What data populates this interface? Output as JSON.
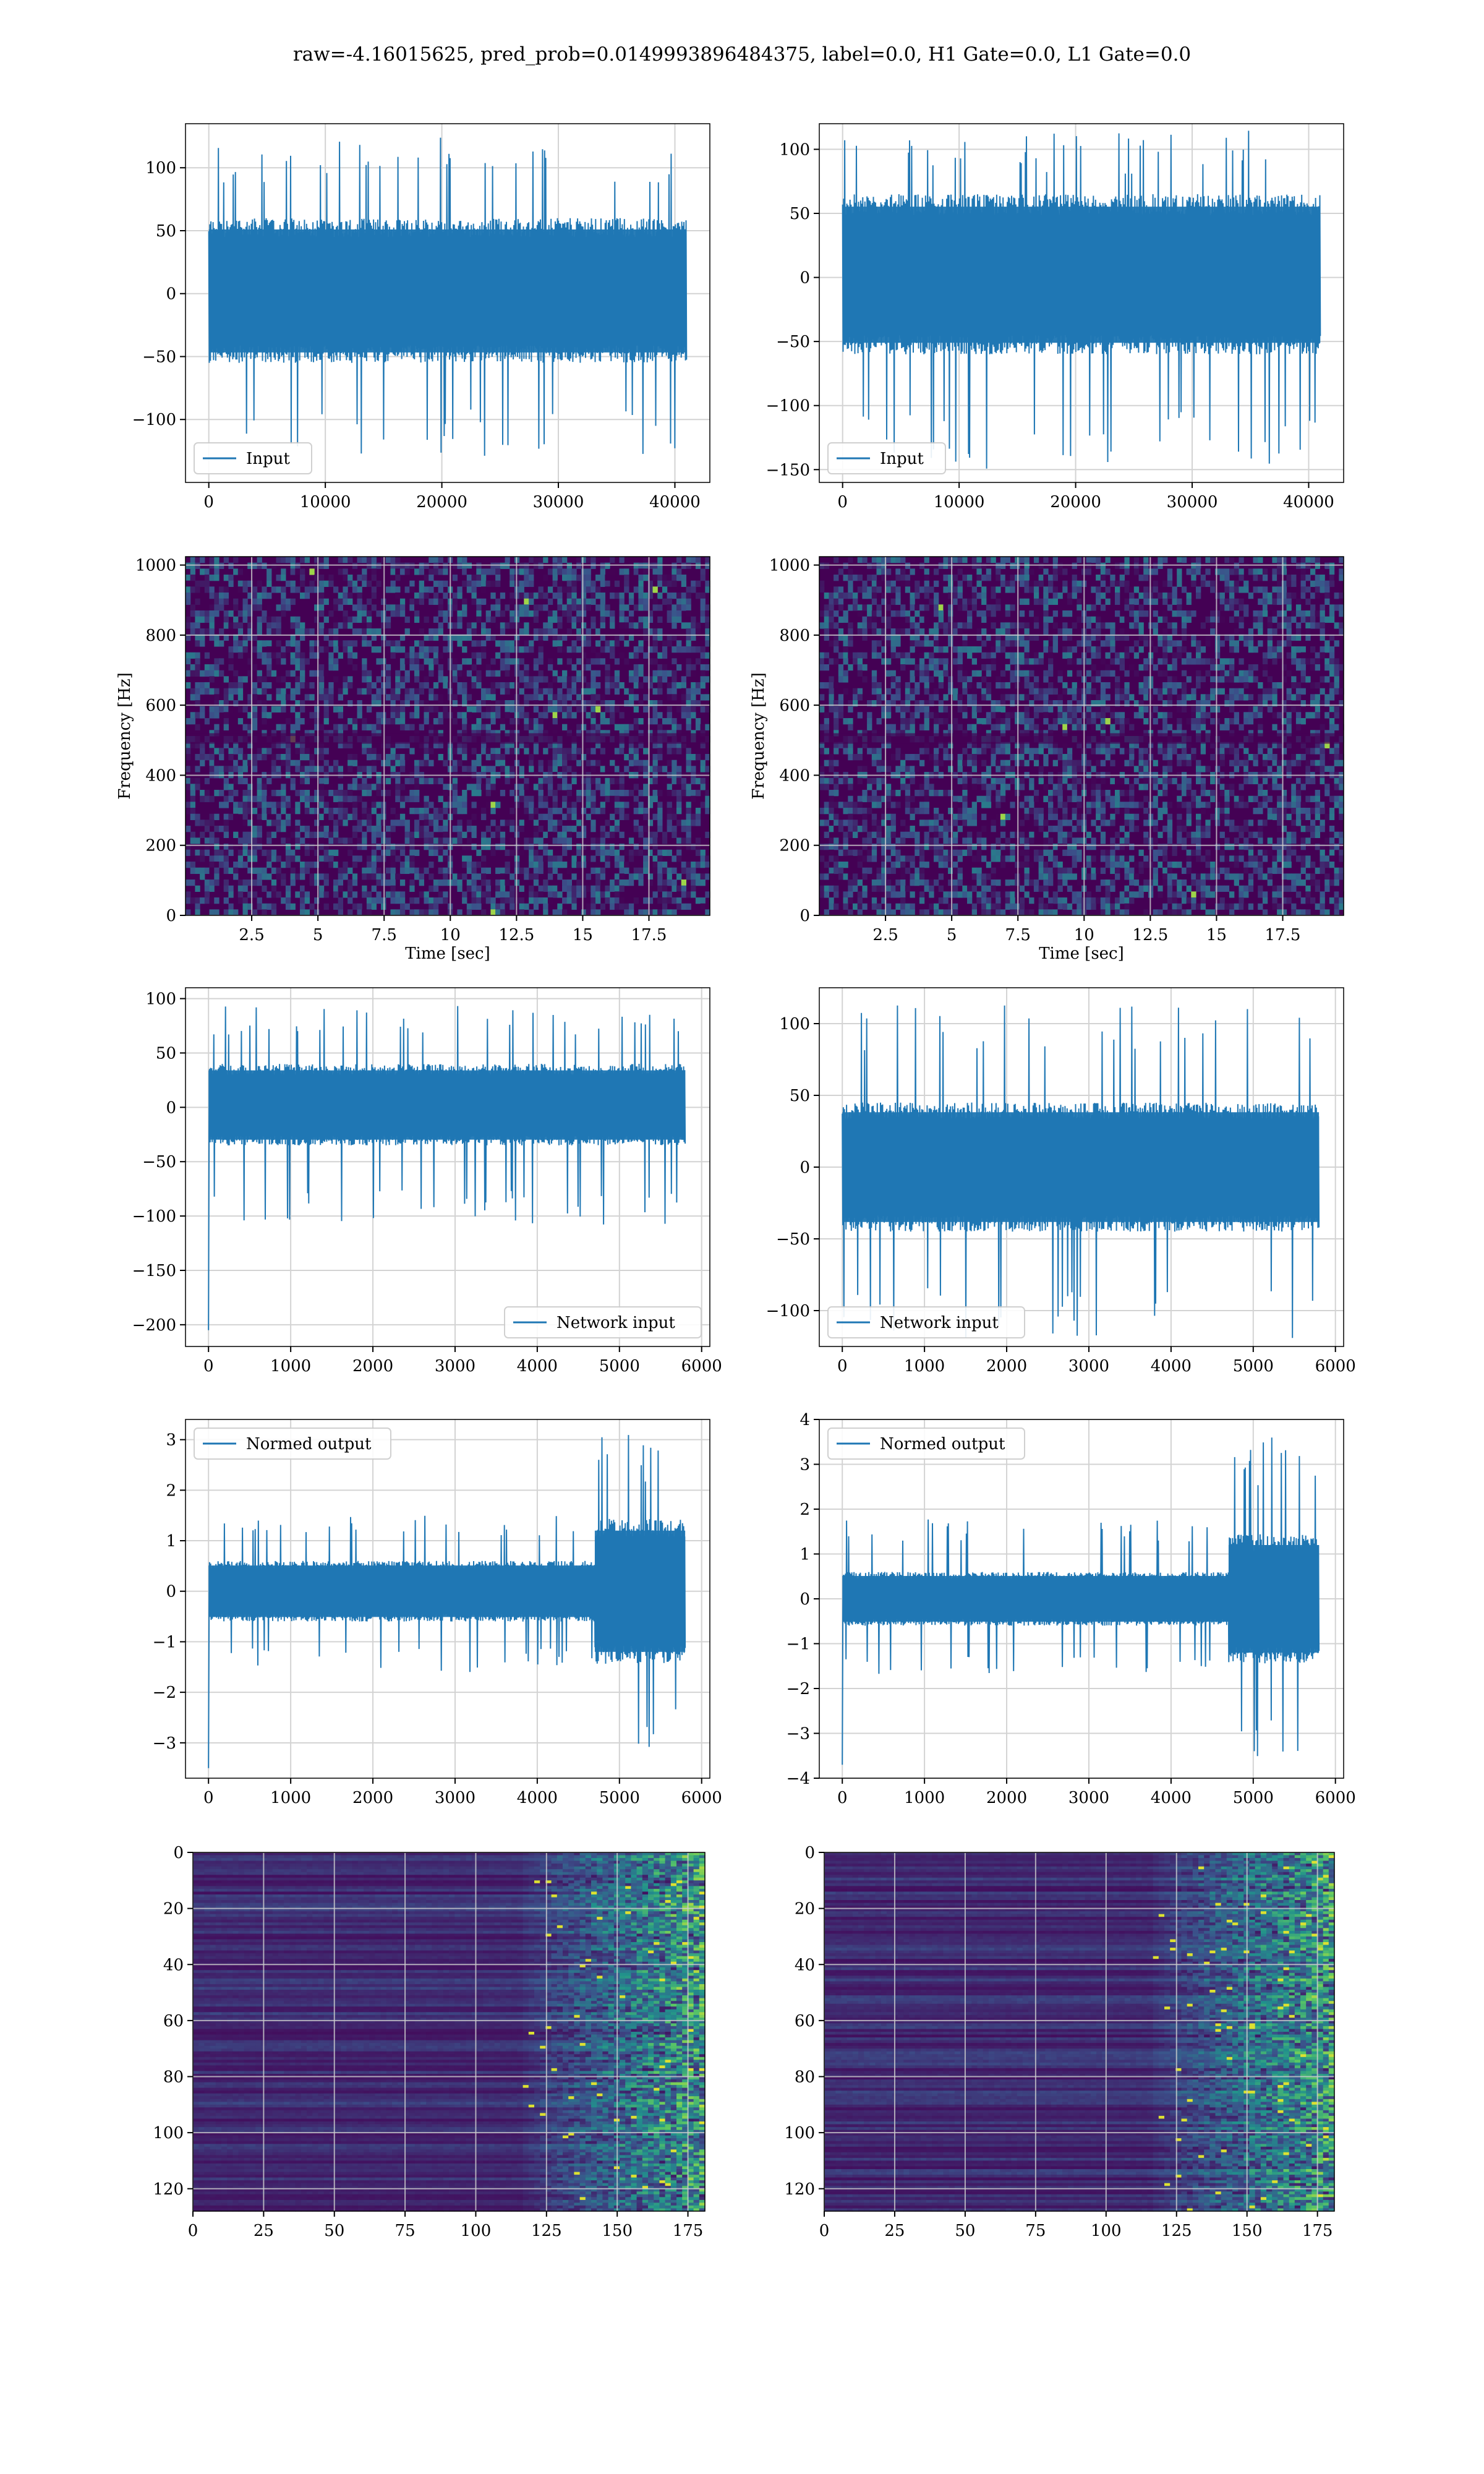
{
  "figure": {
    "title": "raw=-4.16015625, pred_prob=0.0149993896484375, label=0.0, H1 Gate=0.0, L1 Gate=0.0"
  },
  "colors": {
    "line": "#1f77b4",
    "grid": "#d3d3d3",
    "viridis_dark": "#440154",
    "viridis_mid": "#21908d",
    "viridis_bright": "#fde725"
  },
  "chart_data": [
    {
      "id": "input-left",
      "type": "line",
      "title": "",
      "xlabel": "",
      "ylabel": "",
      "xlim": [
        -2000,
        43000
      ],
      "ylim": [
        -150,
        135
      ],
      "x_range": [
        0,
        41000
      ],
      "xticks": [
        0,
        10000,
        20000,
        30000,
        40000
      ],
      "yticks": [
        -100,
        -50,
        0,
        50,
        100
      ],
      "series": [
        {
          "name": "Input",
          "envelope": {
            "core": [
              -55,
              60
            ],
            "peak_max": 125,
            "peak_min": -130
          }
        }
      ],
      "legend": "lower-left",
      "grid": true
    },
    {
      "id": "input-right",
      "type": "line",
      "title": "",
      "xlabel": "",
      "ylabel": "",
      "xlim": [
        -2000,
        43000
      ],
      "ylim": [
        -160,
        120
      ],
      "x_range": [
        0,
        41000
      ],
      "xticks": [
        0,
        10000,
        20000,
        30000,
        40000
      ],
      "yticks": [
        -150,
        -100,
        -50,
        0,
        50,
        100
      ],
      "series": [
        {
          "name": "Input",
          "envelope": {
            "core": [
              -60,
              65
            ],
            "peak_max": 115,
            "peak_min": -150
          }
        }
      ],
      "legend": "lower-left",
      "grid": true
    },
    {
      "id": "spectrogram-left",
      "type": "heatmap",
      "title": "",
      "xlabel": "Time [sec]",
      "ylabel": "Frequency [Hz]",
      "xlim": [
        0,
        19.8
      ],
      "ylim": [
        0,
        1024
      ],
      "xticks": [
        2.5,
        5.0,
        7.5,
        10.0,
        12.5,
        15.0,
        17.5
      ],
      "yticks": [
        0,
        200,
        400,
        600,
        800,
        1000
      ],
      "colormap": "viridis",
      "grid": true
    },
    {
      "id": "spectrogram-right",
      "type": "heatmap",
      "title": "",
      "xlabel": "Time [sec]",
      "ylabel": "Frequency [Hz]",
      "xlim": [
        0,
        19.8
      ],
      "ylim": [
        0,
        1024
      ],
      "xticks": [
        2.5,
        5.0,
        7.5,
        10.0,
        12.5,
        15.0,
        17.5
      ],
      "yticks": [
        0,
        200,
        400,
        600,
        800,
        1000
      ],
      "colormap": "viridis",
      "grid": true
    },
    {
      "id": "network-left",
      "type": "line",
      "title": "",
      "xlabel": "",
      "ylabel": "",
      "xlim": [
        -280,
        6100
      ],
      "ylim": [
        -220,
        110
      ],
      "x_range": [
        0,
        5800
      ],
      "xticks": [
        0,
        1000,
        2000,
        3000,
        4000,
        5000,
        6000
      ],
      "yticks": [
        -200,
        -150,
        -100,
        -50,
        0,
        50,
        100
      ],
      "series": [
        {
          "name": "Network input",
          "envelope": {
            "core": [
              -35,
              40
            ],
            "peak_max": 95,
            "peak_min": -108,
            "spike_min": -205
          }
        }
      ],
      "legend": "lower-right",
      "grid": true
    },
    {
      "id": "network-right",
      "type": "line",
      "title": "",
      "xlabel": "",
      "ylabel": "",
      "xlim": [
        -280,
        6100
      ],
      "ylim": [
        -125,
        125
      ],
      "x_range": [
        0,
        5800
      ],
      "xticks": [
        0,
        1000,
        2000,
        3000,
        4000,
        5000,
        6000
      ],
      "yticks": [
        -100,
        -50,
        0,
        50,
        100
      ],
      "series": [
        {
          "name": "Network input",
          "envelope": {
            "core": [
              -45,
              45
            ],
            "peak_max": 115,
            "peak_min": -120
          }
        }
      ],
      "legend": "lower-left",
      "grid": true
    },
    {
      "id": "normed-left",
      "type": "line",
      "title": "",
      "xlabel": "",
      "ylabel": "",
      "xlim": [
        -280,
        6100
      ],
      "ylim": [
        -3.7,
        3.4
      ],
      "x_range": [
        0,
        5800
      ],
      "xticks": [
        0,
        1000,
        2000,
        3000,
        4000,
        5000,
        6000
      ],
      "yticks": [
        -3,
        -2,
        -1,
        0,
        1,
        2,
        3
      ],
      "series": [
        {
          "name": "Normed output",
          "envelope": {
            "core": [
              -0.6,
              0.6
            ],
            "peak_max": 1.5,
            "peak_min": -1.6,
            "burst_x": [
              4700,
              5800
            ],
            "burst_peak": 3.1,
            "spike_min": -3.5
          }
        }
      ],
      "legend": "upper-left",
      "grid": true
    },
    {
      "id": "normed-right",
      "type": "line",
      "title": "",
      "xlabel": "",
      "ylabel": "",
      "xlim": [
        -280,
        6100
      ],
      "ylim": [
        -4,
        4
      ],
      "x_range": [
        0,
        5800
      ],
      "xticks": [
        0,
        1000,
        2000,
        3000,
        4000,
        5000,
        6000
      ],
      "yticks": [
        -4,
        -3,
        -2,
        -1,
        0,
        1,
        2,
        3,
        4
      ],
      "series": [
        {
          "name": "Normed output",
          "envelope": {
            "core": [
              -0.6,
              0.6
            ],
            "peak_max": 1.8,
            "peak_min": -1.7,
            "burst_x": [
              4700,
              5800
            ],
            "burst_peak": 3.6,
            "spike_min": -3.7
          }
        }
      ],
      "legend": "upper-left",
      "grid": true
    },
    {
      "id": "feature-left",
      "type": "heatmap",
      "title": "",
      "xlabel": "",
      "ylabel": "",
      "xlim": [
        0,
        181
      ],
      "ylim": [
        128,
        0
      ],
      "xticks": [
        0,
        25,
        50,
        75,
        100,
        125,
        150,
        175
      ],
      "yticks": [
        0,
        20,
        40,
        60,
        80,
        100,
        120
      ],
      "colormap": "viridis",
      "activity_onset_col": 125,
      "grid": true
    },
    {
      "id": "feature-right",
      "type": "heatmap",
      "title": "",
      "xlabel": "",
      "ylabel": "",
      "xlim": [
        0,
        181
      ],
      "ylim": [
        128,
        0
      ],
      "xticks": [
        0,
        25,
        50,
        75,
        100,
        125,
        150,
        175
      ],
      "yticks": [
        0,
        20,
        40,
        60,
        80,
        100,
        120
      ],
      "colormap": "viridis",
      "activity_onset_col": 125,
      "grid": true
    }
  ]
}
